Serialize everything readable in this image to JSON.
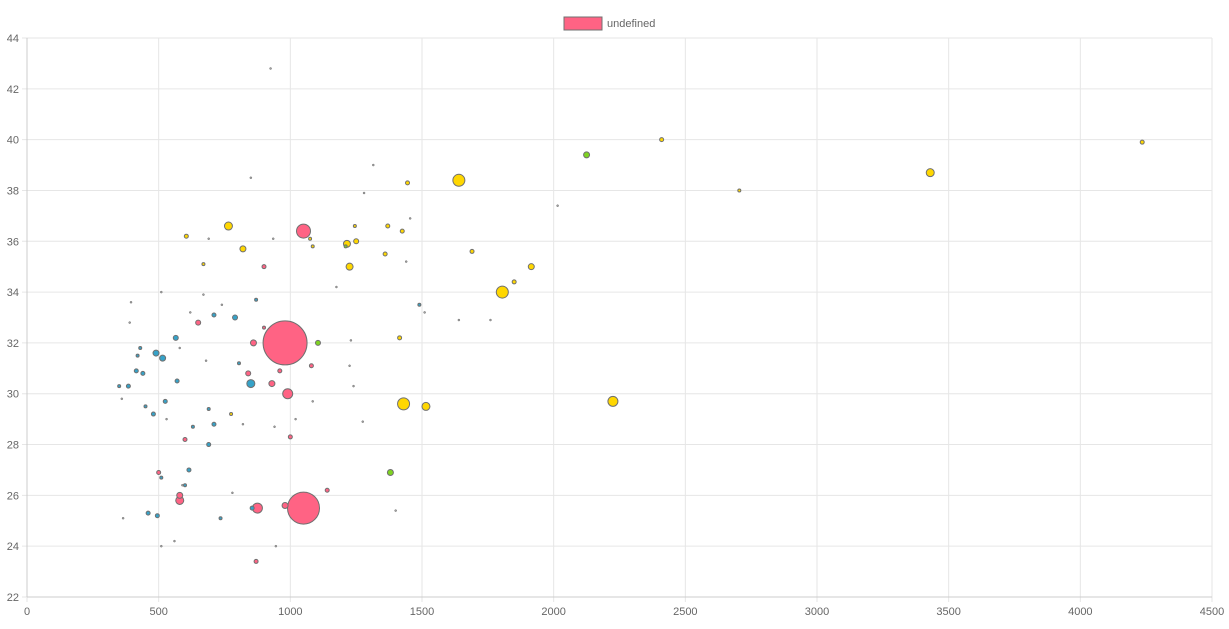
{
  "chart_data": {
    "type": "scatter",
    "title": "",
    "xlabel": "",
    "ylabel": "",
    "xlim": [
      0,
      4500
    ],
    "ylim": [
      22,
      44
    ],
    "x_ticks": [
      0,
      500,
      1000,
      1500,
      2000,
      2500,
      3000,
      3500,
      4000,
      4500
    ],
    "y_ticks": [
      22,
      24,
      26,
      28,
      30,
      32,
      34,
      36,
      38,
      40,
      42,
      44
    ],
    "grid": true,
    "legend": {
      "position": "top-center",
      "label": "undefined",
      "color": "#ff6384"
    },
    "colors": {
      "red": "#ff6384",
      "teal": "#36a2c8",
      "yellow": "#ffd700",
      "green": "#7ed321",
      "gray": "#a0a0a0",
      "stroke": "#707070"
    },
    "series": [
      {
        "color": "red",
        "points": [
          {
            "x": 980,
            "y": 32.0,
            "r": 22
          },
          {
            "x": 1050,
            "y": 25.5,
            "r": 16
          },
          {
            "x": 1050,
            "y": 36.4,
            "r": 7
          },
          {
            "x": 990,
            "y": 30.0,
            "r": 5
          },
          {
            "x": 875,
            "y": 25.5,
            "r": 5
          },
          {
            "x": 860,
            "y": 32.0,
            "r": 3
          },
          {
            "x": 580,
            "y": 25.8,
            "r": 4
          },
          {
            "x": 580,
            "y": 26.0,
            "r": 3
          },
          {
            "x": 930,
            "y": 30.4,
            "r": 3
          },
          {
            "x": 980,
            "y": 25.6,
            "r": 3
          },
          {
            "x": 840,
            "y": 30.8,
            "r": 2.5
          },
          {
            "x": 650,
            "y": 32.8,
            "r": 2.5
          },
          {
            "x": 600,
            "y": 28.2,
            "r": 2
          },
          {
            "x": 1140,
            "y": 26.2,
            "r": 2
          },
          {
            "x": 900,
            "y": 35.0,
            "r": 2
          },
          {
            "x": 870,
            "y": 23.4,
            "r": 2
          },
          {
            "x": 1000,
            "y": 28.3,
            "r": 2
          },
          {
            "x": 500,
            "y": 26.9,
            "r": 2
          },
          {
            "x": 960,
            "y": 30.9,
            "r": 2
          },
          {
            "x": 1080,
            "y": 31.1,
            "r": 2
          },
          {
            "x": 900,
            "y": 32.6,
            "r": 1.5
          }
        ]
      },
      {
        "color": "teal",
        "points": [
          {
            "x": 850,
            "y": 30.4,
            "r": 4
          },
          {
            "x": 490,
            "y": 31.6,
            "r": 3
          },
          {
            "x": 515,
            "y": 31.4,
            "r": 3
          },
          {
            "x": 565,
            "y": 32.2,
            "r": 2.5
          },
          {
            "x": 790,
            "y": 33.0,
            "r": 2.5
          },
          {
            "x": 710,
            "y": 33.1,
            "r": 2
          },
          {
            "x": 460,
            "y": 25.3,
            "r": 2
          },
          {
            "x": 710,
            "y": 28.8,
            "r": 2
          },
          {
            "x": 525,
            "y": 29.7,
            "r": 2
          },
          {
            "x": 570,
            "y": 30.5,
            "r": 2
          },
          {
            "x": 385,
            "y": 30.3,
            "r": 2
          },
          {
            "x": 415,
            "y": 30.9,
            "r": 2
          },
          {
            "x": 440,
            "y": 30.8,
            "r": 2
          },
          {
            "x": 480,
            "y": 29.2,
            "r": 2
          },
          {
            "x": 495,
            "y": 25.2,
            "r": 2
          },
          {
            "x": 690,
            "y": 28.0,
            "r": 2
          },
          {
            "x": 615,
            "y": 27.0,
            "r": 2
          },
          {
            "x": 630,
            "y": 28.7,
            "r": 1.5
          },
          {
            "x": 600,
            "y": 26.4,
            "r": 1.5
          },
          {
            "x": 855,
            "y": 25.5,
            "r": 2
          },
          {
            "x": 1490,
            "y": 33.5,
            "r": 1.5
          },
          {
            "x": 870,
            "y": 33.7,
            "r": 1.5
          },
          {
            "x": 805,
            "y": 31.2,
            "r": 1.5
          },
          {
            "x": 690,
            "y": 29.4,
            "r": 1.5
          },
          {
            "x": 735,
            "y": 25.1,
            "r": 1.5
          },
          {
            "x": 510,
            "y": 26.7,
            "r": 1.5
          },
          {
            "x": 420,
            "y": 31.5,
            "r": 1.5
          },
          {
            "x": 350,
            "y": 30.3,
            "r": 1.5
          },
          {
            "x": 450,
            "y": 29.5,
            "r": 1.5
          },
          {
            "x": 430,
            "y": 31.8,
            "r": 1.5
          }
        ]
      },
      {
        "color": "yellow",
        "points": [
          {
            "x": 1640,
            "y": 38.4,
            "r": 6
          },
          {
            "x": 1805,
            "y": 34.0,
            "r": 6
          },
          {
            "x": 1430,
            "y": 29.6,
            "r": 6
          },
          {
            "x": 2225,
            "y": 29.7,
            "r": 5
          },
          {
            "x": 3430,
            "y": 38.7,
            "r": 4
          },
          {
            "x": 765,
            "y": 36.6,
            "r": 4
          },
          {
            "x": 1515,
            "y": 29.5,
            "r": 4
          },
          {
            "x": 1225,
            "y": 35.0,
            "r": 3.5
          },
          {
            "x": 1215,
            "y": 35.9,
            "r": 3.5
          },
          {
            "x": 820,
            "y": 35.7,
            "r": 3
          },
          {
            "x": 1915,
            "y": 35.0,
            "r": 3
          },
          {
            "x": 1250,
            "y": 36.0,
            "r": 2.5
          },
          {
            "x": 1690,
            "y": 35.6,
            "r": 2
          },
          {
            "x": 1445,
            "y": 38.3,
            "r": 2
          },
          {
            "x": 2410,
            "y": 40.0,
            "r": 2
          },
          {
            "x": 1370,
            "y": 36.6,
            "r": 2
          },
          {
            "x": 1425,
            "y": 36.4,
            "r": 2
          },
          {
            "x": 1360,
            "y": 35.5,
            "r": 2
          },
          {
            "x": 1850,
            "y": 34.4,
            "r": 2
          },
          {
            "x": 1415,
            "y": 32.2,
            "r": 2
          },
          {
            "x": 4235,
            "y": 39.9,
            "r": 2
          },
          {
            "x": 2705,
            "y": 38.0,
            "r": 1.5
          },
          {
            "x": 605,
            "y": 36.2,
            "r": 2
          },
          {
            "x": 1085,
            "y": 35.8,
            "r": 1.5
          },
          {
            "x": 1245,
            "y": 36.6,
            "r": 1.5
          },
          {
            "x": 670,
            "y": 35.1,
            "r": 1.5
          },
          {
            "x": 775,
            "y": 29.2,
            "r": 1.5
          },
          {
            "x": 1075,
            "y": 36.1,
            "r": 1.5
          }
        ]
      },
      {
        "color": "green",
        "points": [
          {
            "x": 2125,
            "y": 39.4,
            "r": 3
          },
          {
            "x": 1380,
            "y": 26.9,
            "r": 3
          },
          {
            "x": 1105,
            "y": 32.0,
            "r": 2.5
          },
          {
            "x": 1210,
            "y": 35.8,
            "r": 1.5
          }
        ]
      },
      {
        "color": "gray",
        "points": [
          {
            "x": 925,
            "y": 42.8,
            "r": 1
          },
          {
            "x": 1315,
            "y": 39.0,
            "r": 1
          },
          {
            "x": 1280,
            "y": 37.9,
            "r": 1
          },
          {
            "x": 2015,
            "y": 37.4,
            "r": 1
          },
          {
            "x": 850,
            "y": 38.5,
            "r": 1
          },
          {
            "x": 1455,
            "y": 36.9,
            "r": 1
          },
          {
            "x": 935,
            "y": 36.1,
            "r": 1
          },
          {
            "x": 690,
            "y": 36.1,
            "r": 1
          },
          {
            "x": 1175,
            "y": 34.2,
            "r": 1
          },
          {
            "x": 1510,
            "y": 33.2,
            "r": 1
          },
          {
            "x": 1640,
            "y": 32.9,
            "r": 1
          },
          {
            "x": 1760,
            "y": 32.9,
            "r": 1
          },
          {
            "x": 390,
            "y": 32.8,
            "r": 1
          },
          {
            "x": 395,
            "y": 33.6,
            "r": 1
          },
          {
            "x": 510,
            "y": 34.0,
            "r": 1
          },
          {
            "x": 1230,
            "y": 32.1,
            "r": 1
          },
          {
            "x": 1225,
            "y": 31.1,
            "r": 1
          },
          {
            "x": 1240,
            "y": 30.3,
            "r": 1
          },
          {
            "x": 1085,
            "y": 29.7,
            "r": 1
          },
          {
            "x": 1275,
            "y": 28.9,
            "r": 1
          },
          {
            "x": 1400,
            "y": 25.4,
            "r": 1
          },
          {
            "x": 365,
            "y": 25.1,
            "r": 1
          },
          {
            "x": 510,
            "y": 24.0,
            "r": 1
          },
          {
            "x": 560,
            "y": 24.2,
            "r": 1
          },
          {
            "x": 945,
            "y": 24.0,
            "r": 1
          },
          {
            "x": 360,
            "y": 29.8,
            "r": 1
          },
          {
            "x": 530,
            "y": 29.0,
            "r": 1
          },
          {
            "x": 780,
            "y": 26.1,
            "r": 1
          },
          {
            "x": 820,
            "y": 28.8,
            "r": 1
          },
          {
            "x": 1020,
            "y": 29.0,
            "r": 1
          },
          {
            "x": 940,
            "y": 28.7,
            "r": 1
          },
          {
            "x": 620,
            "y": 33.2,
            "r": 1
          },
          {
            "x": 740,
            "y": 33.5,
            "r": 1
          },
          {
            "x": 670,
            "y": 33.9,
            "r": 1
          },
          {
            "x": 1440,
            "y": 35.2,
            "r": 1
          },
          {
            "x": 580,
            "y": 31.8,
            "r": 1
          },
          {
            "x": 680,
            "y": 31.3,
            "r": 1
          },
          {
            "x": 590,
            "y": 26.4,
            "r": 1
          }
        ]
      }
    ]
  }
}
